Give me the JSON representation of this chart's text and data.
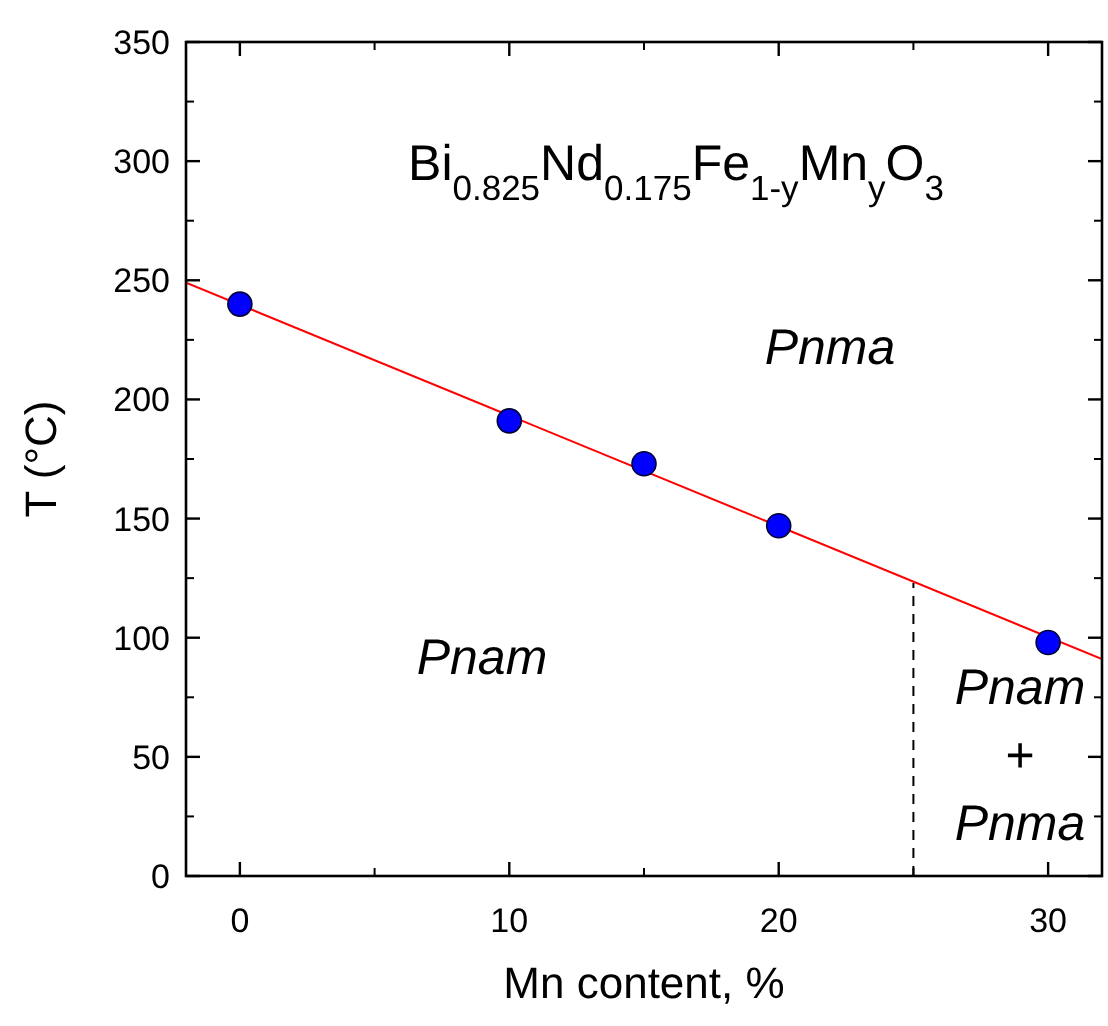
{
  "chart_data": {
    "type": "scatter",
    "xlabel": "Mn content, %",
    "ylabel": "T (°C)",
    "xlim": [
      -2,
      32
    ],
    "xticks": [
      0,
      10,
      20,
      30
    ],
    "ylim": [
      0,
      350
    ],
    "yticks": [
      0,
      50,
      100,
      150,
      200,
      250,
      300,
      350
    ],
    "grid": false,
    "marker": "circle",
    "series": [
      {
        "color": "#0000ff",
        "x": [
          0,
          10,
          15,
          20,
          30
        ],
        "values": [
          240,
          191,
          173,
          147,
          98
        ]
      },
      {
        "type": "line",
        "color": "#ff0000",
        "marker": "none",
        "x": [
          -2,
          32
        ],
        "values": [
          249,
          91
        ]
      },
      {
        "type": "line",
        "color": "#000000",
        "marker": "none",
        "line_style": "dashed",
        "x": [
          25,
          25
        ],
        "values": [
          0,
          123
        ]
      }
    ],
    "annotations": [
      "Bi$_{0.825}$Nd$_{0.175}$Fe$_{1-y}$Mn$_{y}$O$_{3}$",
      "Pnma",
      "Pnam",
      "Pnam + Pnma"
    ]
  }
}
